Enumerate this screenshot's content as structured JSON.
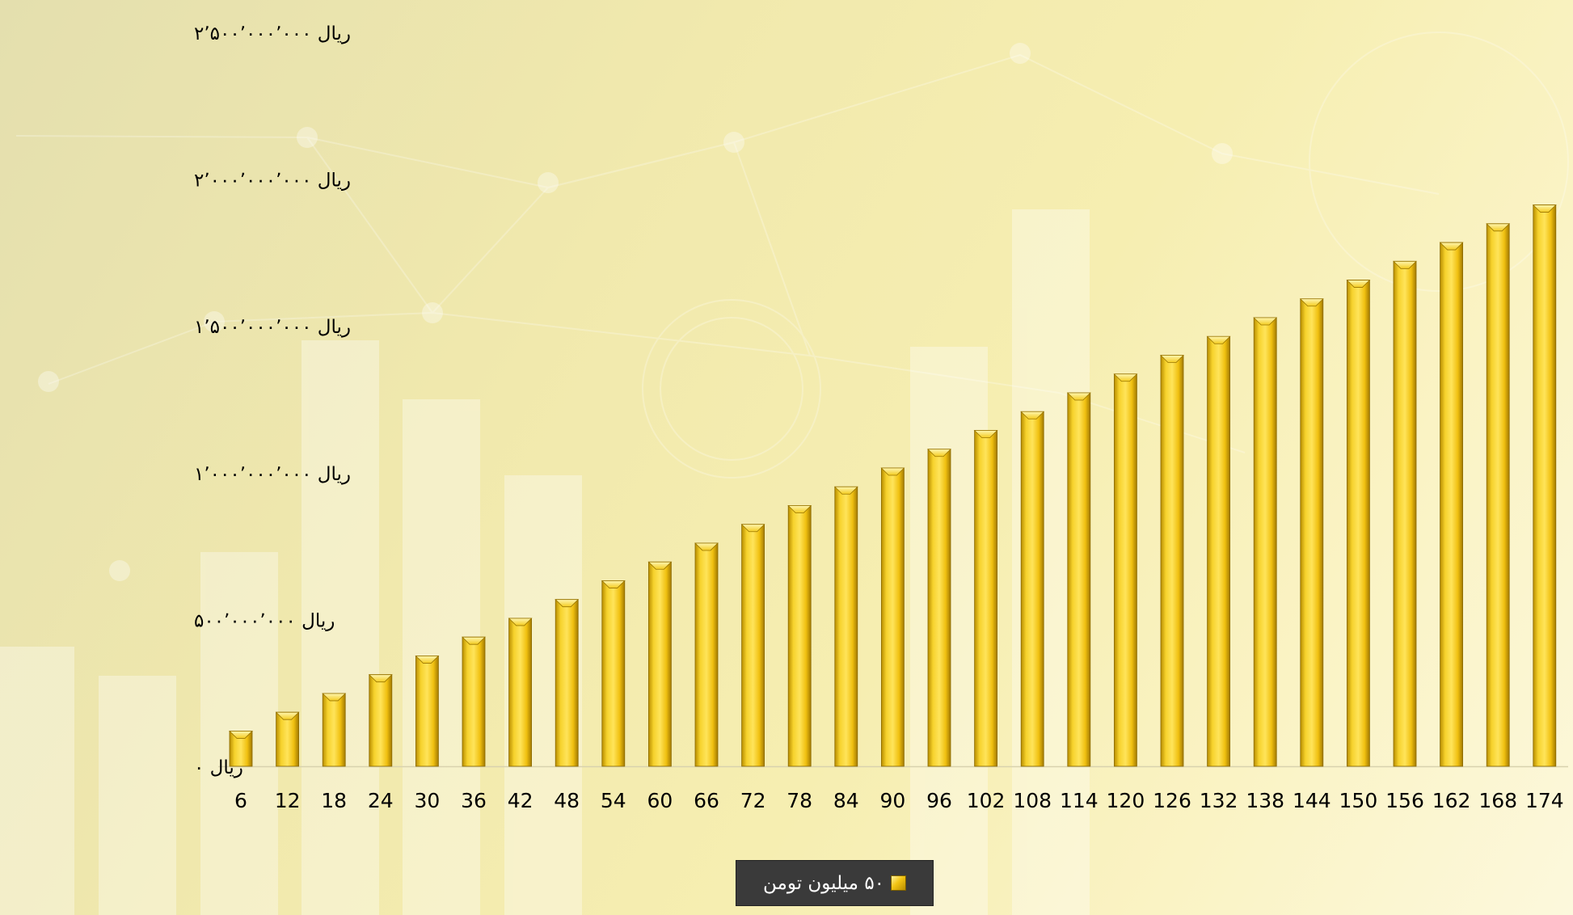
{
  "chart_data": {
    "type": "bar",
    "categories": [
      "6",
      "12",
      "18",
      "24",
      "30",
      "36",
      "42",
      "48",
      "54",
      "60",
      "66",
      "72",
      "78",
      "84",
      "90",
      "96",
      "102",
      "108",
      "114",
      "120",
      "126",
      "132",
      "138",
      "144",
      "150",
      "156",
      "162",
      "168",
      "174"
    ],
    "series": [
      {
        "name": "۵۰ میلیون تومن",
        "values": [
          120000000,
          184000000,
          248000000,
          312000000,
          376000000,
          440000000,
          504000000,
          568000000,
          632000000,
          696000000,
          760000000,
          824000000,
          888000000,
          952000000,
          1016000000,
          1080000000,
          1144000000,
          1208000000,
          1272000000,
          1336000000,
          1400000000,
          1464000000,
          1528000000,
          1592000000,
          1656000000,
          1720000000,
          1784000000,
          1848000000,
          1912000000
        ]
      }
    ],
    "yticks": [
      0,
      500000000,
      1000000000,
      1500000000,
      2000000000,
      2500000000
    ],
    "ytick_labels": [
      "ریال ۰",
      "ریال ۵۰۰٬۰۰۰٬۰۰۰",
      "ریال ۱٬۰۰۰٬۰۰۰٬۰۰۰",
      "ریال ۱٬۵۰۰٬۰۰۰٬۰۰۰",
      "ریال ۲٬۰۰۰٬۰۰۰٬۰۰۰",
      "ریال ۲٬۵۰۰٬۰۰۰٬۰۰۰"
    ],
    "ylim": [
      0,
      2500000000
    ],
    "title": "",
    "xlabel": "",
    "ylabel": "",
    "grid": false,
    "legend": "bottom",
    "bar_color": "#e8b80c"
  }
}
